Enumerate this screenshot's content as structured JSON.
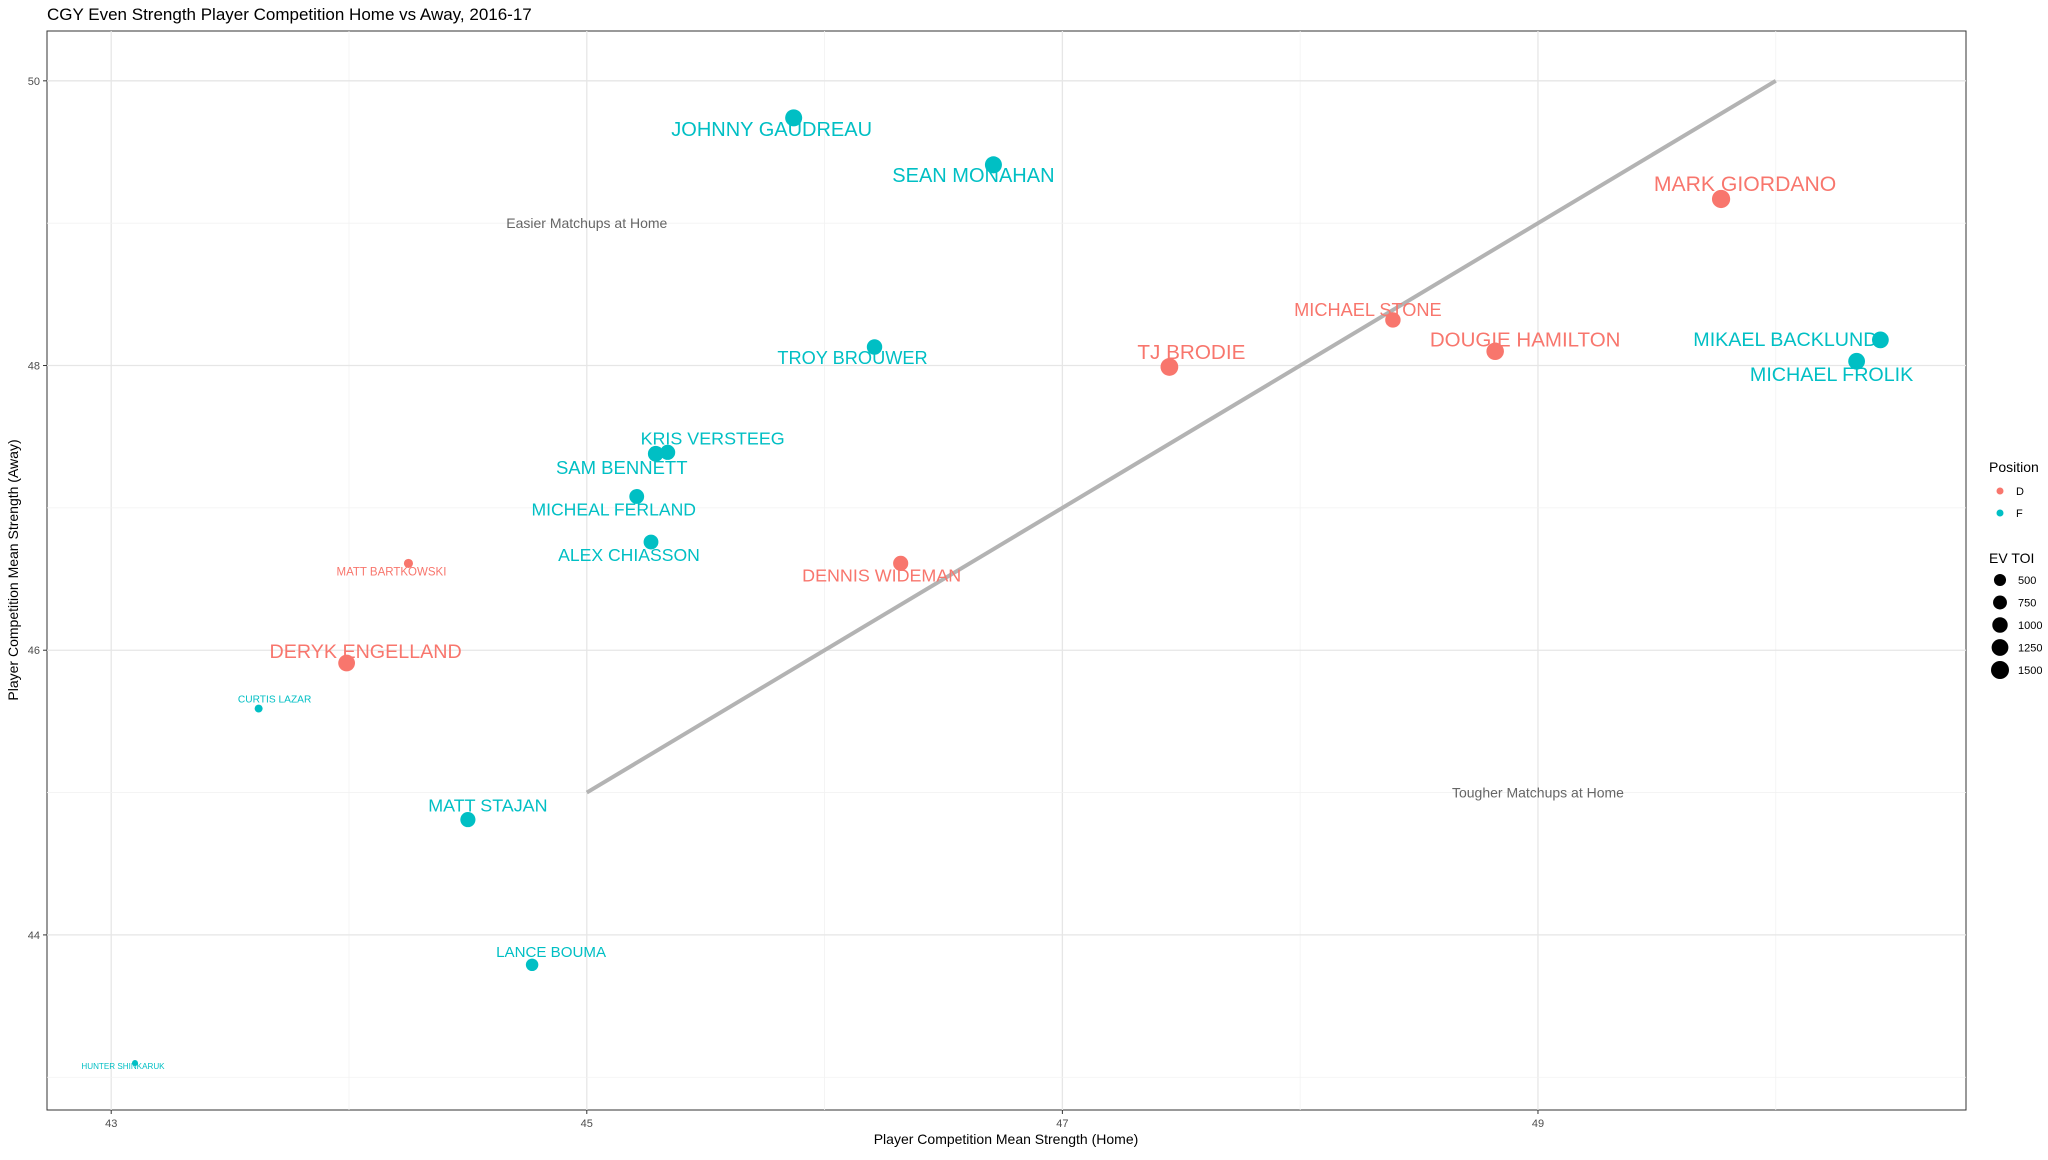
{
  "chart_data": {
    "type": "scatter",
    "title": "CGY Even Strength Player Competition Home vs Away, 2016-17",
    "xlabel": "Player Competition Mean Strength (Home)",
    "ylabel": "Player Competition Mean Strength (Away)",
    "xlim": [
      42.73,
      50.8
    ],
    "ylim": [
      42.77,
      50.35
    ],
    "xticks": [
      43,
      45,
      47,
      49
    ],
    "yticks": [
      44,
      46,
      48,
      50
    ],
    "grid": true,
    "reference_line": {
      "from": [
        45,
        45
      ],
      "to": [
        50,
        50
      ]
    },
    "annotations": [
      {
        "text": "Easier Matchups at Home",
        "x": 45,
        "y": 49
      },
      {
        "text": "Tougher Matchups at Home",
        "x": 49,
        "y": 45
      }
    ],
    "colors": {
      "D": "#F8766D",
      "F": "#00BFC4"
    },
    "legend": {
      "placement": "right",
      "position_title": "Position",
      "position_items": [
        "D",
        "F"
      ],
      "size_title": "EV TOI",
      "size_items": [
        500,
        750,
        1000,
        1250,
        1500
      ]
    },
    "points": [
      {
        "name": "JOHNNY GAUDREAU",
        "pos": "F",
        "x": 45.87,
        "y": 49.74,
        "toi": 1300
      },
      {
        "name": "SEAN MONAHAN",
        "pos": "F",
        "x": 46.71,
        "y": 49.41,
        "toi": 1300
      },
      {
        "name": "MARK GIORDANO",
        "pos": "D",
        "x": 49.77,
        "y": 49.17,
        "toi": 1550
      },
      {
        "name": "MICHAEL STONE",
        "pos": "D",
        "x": 48.39,
        "y": 48.32,
        "toi": 1000
      },
      {
        "name": "DOUGIE HAMILTON",
        "pos": "D",
        "x": 48.82,
        "y": 48.1,
        "toi": 1400
      },
      {
        "name": "TJ BRODIE",
        "pos": "D",
        "x": 47.45,
        "y": 47.99,
        "toi": 1450
      },
      {
        "name": "MIKAEL BACKLUND",
        "pos": "F",
        "x": 50.44,
        "y": 48.18,
        "toi": 1250
      },
      {
        "name": "MICHAEL FROLIK",
        "pos": "F",
        "x": 50.34,
        "y": 48.03,
        "toi": 1250
      },
      {
        "name": "TROY BROUWER",
        "pos": "F",
        "x": 46.21,
        "y": 48.13,
        "toi": 1000
      },
      {
        "name": "KRIS VERSTEEG",
        "pos": "F",
        "x": 45.34,
        "y": 47.39,
        "toi": 950
      },
      {
        "name": "SAM BENNETT",
        "pos": "F",
        "x": 45.29,
        "y": 47.38,
        "toi": 1050
      },
      {
        "name": "MICHEAL FERLAND",
        "pos": "F",
        "x": 45.21,
        "y": 47.08,
        "toi": 900
      },
      {
        "name": "ALEX CHIASSON",
        "pos": "F",
        "x": 45.27,
        "y": 46.76,
        "toi": 900
      },
      {
        "name": "DENNIS WIDEMAN",
        "pos": "D",
        "x": 46.32,
        "y": 46.61,
        "toi": 950
      },
      {
        "name": "MATT BARTKOWSKI",
        "pos": "D",
        "x": 44.25,
        "y": 46.61,
        "toi": 200
      },
      {
        "name": "DERYK ENGELLAND",
        "pos": "D",
        "x": 43.99,
        "y": 45.91,
        "toi": 1250
      },
      {
        "name": "CURTIS LAZAR",
        "pos": "F",
        "x": 43.62,
        "y": 45.59,
        "toi": 120
      },
      {
        "name": "MATT STAJAN",
        "pos": "F",
        "x": 44.5,
        "y": 44.81,
        "toi": 950
      },
      {
        "name": "LANCE BOUMA",
        "pos": "F",
        "x": 44.77,
        "y": 43.79,
        "toi": 550
      },
      {
        "name": "HUNTER SHINKARUK",
        "pos": "F",
        "x": 43.1,
        "y": 43.1,
        "toi": 30
      }
    ]
  }
}
